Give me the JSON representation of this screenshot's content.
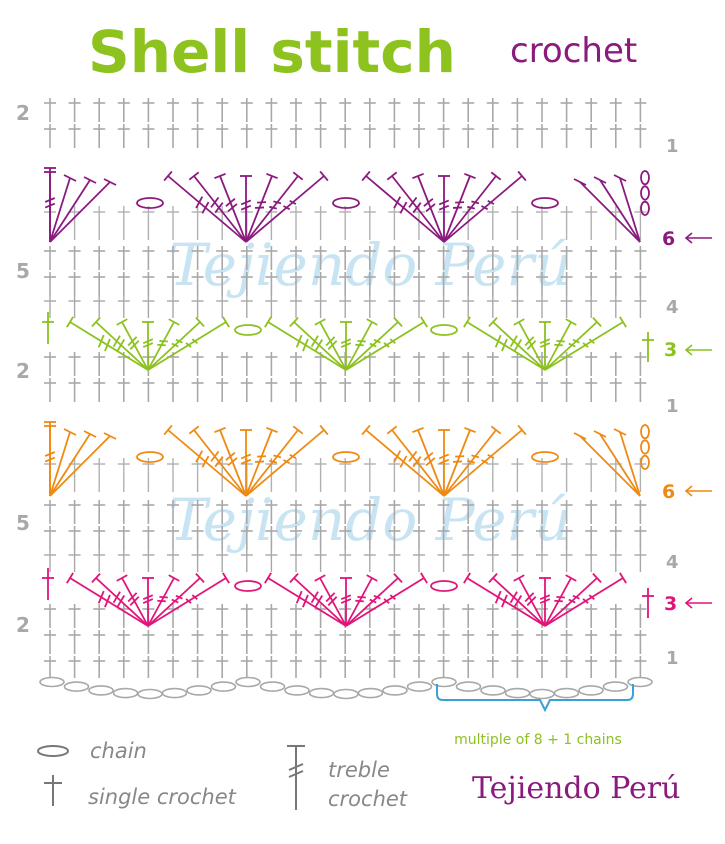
{
  "header": {
    "title": "Shell stitch",
    "subtitle": "crochet"
  },
  "watermark": "Tejiendo Perú",
  "brand": "Tejiendo Perú",
  "row_numbers_left": {
    "row2_top": "2",
    "row5_upper": "5",
    "row2_middle": "2",
    "row5_lower": "5",
    "row2_bottom": "2"
  },
  "row_numbers_right": {
    "row1_top": "1",
    "row6_upper": "6",
    "row4_upper": "4",
    "row3_upper": "3",
    "row1_middle": "1",
    "row6_lower": "6",
    "row4_lower": "4",
    "row3_lower": "3",
    "row1_bottom": "1"
  },
  "repeat_note": "multiple of 8 + 1 chains",
  "legend": {
    "chain": "chain",
    "single_crochet": "single crochet",
    "treble_line1": "treble",
    "treble_line2": "crochet"
  },
  "colors": {
    "title_green": "#8dc21f",
    "purple": "#8b1a7e",
    "green": "#8cc11f",
    "orange": "#ee8a12",
    "magenta": "#e0157a",
    "gray": "#a8a8a8",
    "brace_blue": "#3aa0d8",
    "watermark": "#bfe0f2"
  }
}
